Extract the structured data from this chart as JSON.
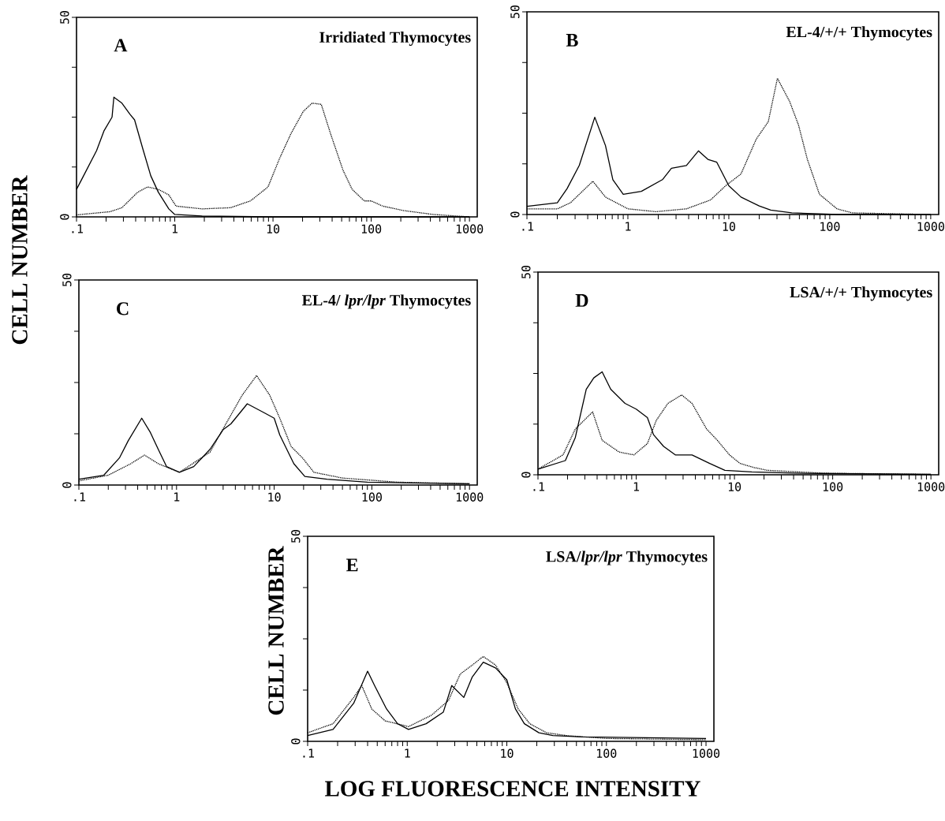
{
  "chart_data": [
    {
      "type": "line",
      "title": "Irridiated Thymocytes",
      "annotations": [
        "A"
      ],
      "ylabel": "CELL NUMBER",
      "log": "x",
      "xlim": [
        0.1,
        1200
      ],
      "ylim": [
        0,
        50
      ],
      "xticks": [
        {
          "value": 0.1,
          "label": ".1"
        },
        {
          "value": 0.2,
          "label": null
        },
        {
          "value": 0.3,
          "label": null
        },
        {
          "value": 0.4,
          "label": null
        },
        {
          "value": 0.5,
          "label": null
        },
        {
          "value": 0.6,
          "label": null
        },
        {
          "value": 0.7,
          "label": null
        },
        {
          "value": 0.8,
          "label": null
        },
        {
          "value": 0.9,
          "label": null
        },
        1,
        {
          "value": 2,
          "label": null
        },
        {
          "value": 3,
          "label": null
        },
        {
          "value": 4,
          "label": null
        },
        {
          "value": 5,
          "label": null
        },
        {
          "value": 6,
          "label": null
        },
        {
          "value": 7,
          "label": null
        },
        {
          "value": 8,
          "label": null
        },
        {
          "value": 9,
          "label": null
        },
        10,
        {
          "value": 20,
          "label": null
        },
        {
          "value": 30,
          "label": null
        },
        {
          "value": 40,
          "label": null
        },
        {
          "value": 50,
          "label": null
        },
        {
          "value": 60,
          "label": null
        },
        {
          "value": 70,
          "label": null
        },
        {
          "value": 80,
          "label": null
        },
        {
          "value": 90,
          "label": null
        },
        100,
        {
          "value": 200,
          "label": null
        },
        {
          "value": 300,
          "label": null
        },
        {
          "value": 400,
          "label": null
        },
        {
          "value": 500,
          "label": null
        },
        {
          "value": 600,
          "label": null
        },
        {
          "value": 700,
          "label": null
        },
        {
          "value": 800,
          "label": null
        },
        {
          "value": 900,
          "label": null
        },
        1000
      ],
      "yticks": [
        0,
        {
          "value": 12.5,
          "label": null
        },
        {
          "value": 25,
          "label": null
        },
        {
          "value": 37.5,
          "label": null
        },
        50
      ],
      "series": [
        {
          "color": "#000000",
          "line_style": "solid",
          "x": [
            0.1,
            0.118,
            0.16,
            0.19,
            0.23,
            0.24,
            0.29,
            0.35,
            0.39,
            0.47,
            0.57,
            0.68,
            0.87,
            1.0,
            1.9,
            10,
            100,
            1000
          ],
          "values": [
            6.9,
            10.3,
            16.6,
            21.5,
            25,
            30,
            28.5,
            25.7,
            24.3,
            17.3,
            10.3,
            6.2,
            2,
            0.6,
            0.2,
            0,
            0,
            0
          ]
        },
        {
          "color": "#000000",
          "line_style": "dotted",
          "x": [
            0.1,
            0.22,
            0.29,
            0.42,
            0.53,
            0.68,
            0.87,
            1.03,
            1.9,
            3.7,
            5.9,
            8.9,
            11.6,
            15.2,
            20.3,
            25,
            31,
            38.6,
            51.6,
            63.9,
            85,
            100,
            131,
            210,
            430,
            1000
          ],
          "values": [
            0.5,
            1.3,
            2.3,
            6.2,
            7.5,
            6.9,
            5.5,
            2.7,
            2,
            2.3,
            4,
            7.5,
            14.5,
            20.8,
            26.4,
            28.5,
            28.2,
            20.8,
            11.7,
            6.9,
            4,
            4,
            2.7,
            1.6,
            0.6,
            0
          ]
        }
      ]
    },
    {
      "type": "line",
      "title": "EL-4/+/+ Thymocytes",
      "annotations": [
        "B"
      ],
      "log": "x",
      "xlim": [
        0.1,
        1200
      ],
      "ylim": [
        0,
        50
      ],
      "xticks": [
        {
          "value": 0.1,
          "label": ".1"
        },
        {
          "value": 0.2,
          "label": null
        },
        {
          "value": 0.3,
          "label": null
        },
        {
          "value": 0.4,
          "label": null
        },
        {
          "value": 0.5,
          "label": null
        },
        {
          "value": 0.6,
          "label": null
        },
        {
          "value": 0.7,
          "label": null
        },
        {
          "value": 0.8,
          "label": null
        },
        {
          "value": 0.9,
          "label": null
        },
        1,
        {
          "value": 2,
          "label": null
        },
        {
          "value": 3,
          "label": null
        },
        {
          "value": 4,
          "label": null
        },
        {
          "value": 5,
          "label": null
        },
        {
          "value": 6,
          "label": null
        },
        {
          "value": 7,
          "label": null
        },
        {
          "value": 8,
          "label": null
        },
        {
          "value": 9,
          "label": null
        },
        10,
        {
          "value": 20,
          "label": null
        },
        {
          "value": 30,
          "label": null
        },
        {
          "value": 40,
          "label": null
        },
        {
          "value": 50,
          "label": null
        },
        {
          "value": 60,
          "label": null
        },
        {
          "value": 70,
          "label": null
        },
        {
          "value": 80,
          "label": null
        },
        {
          "value": 90,
          "label": null
        },
        100,
        {
          "value": 200,
          "label": null
        },
        {
          "value": 300,
          "label": null
        },
        {
          "value": 400,
          "label": null
        },
        {
          "value": 500,
          "label": null
        },
        {
          "value": 600,
          "label": null
        },
        {
          "value": 700,
          "label": null
        },
        {
          "value": 800,
          "label": null
        },
        {
          "value": 900,
          "label": null
        },
        1000
      ],
      "yticks": [
        0,
        {
          "value": 12.5,
          "label": null
        },
        {
          "value": 25,
          "label": null
        },
        {
          "value": 37.5,
          "label": null
        },
        50
      ],
      "series": [
        {
          "color": "#000000",
          "line_style": "solid",
          "x": [
            0.1,
            0.2,
            0.25,
            0.33,
            0.47,
            0.6,
            0.71,
            0.9,
            1.36,
            2.2,
            2.7,
            3.8,
            5.0,
            6.2,
            7.6,
            10,
            13.2,
            20,
            26,
            42,
            120,
            1000
          ],
          "values": [
            2,
            2.9,
            6.4,
            12.1,
            24,
            17,
            8.6,
            5,
            5.7,
            8.6,
            11.4,
            12.1,
            15.7,
            13.6,
            12.9,
            7.1,
            4.3,
            2.1,
            1.1,
            0.4,
            0,
            0
          ]
        },
        {
          "color": "#000000",
          "line_style": "dotted",
          "x": [
            0.1,
            0.2,
            0.27,
            0.45,
            0.6,
            1,
            1.9,
            3.8,
            6.6,
            9.3,
            13.2,
            18.7,
            24.6,
            30.3,
            40,
            49,
            60,
            79,
            118,
            167,
            1000
          ],
          "values": [
            1.4,
            1.4,
            2.9,
            8.2,
            4.3,
            1.4,
            0.7,
            1.4,
            3.6,
            7.1,
            10,
            18.6,
            22.9,
            33.6,
            27.9,
            22.1,
            13.6,
            5,
            1.4,
            0.4,
            0
          ]
        }
      ]
    },
    {
      "type": "line",
      "title": "EL-4/ *lpr/lpr* Thymocytes",
      "annotations": [
        "C"
      ],
      "log": "x",
      "xlim": [
        0.1,
        1200
      ],
      "ylim": [
        0,
        50
      ],
      "xticks": [
        {
          "value": 0.1,
          "label": ".1"
        },
        {
          "value": 0.2,
          "label": null
        },
        {
          "value": 0.3,
          "label": null
        },
        {
          "value": 0.4,
          "label": null
        },
        {
          "value": 0.5,
          "label": null
        },
        {
          "value": 0.6,
          "label": null
        },
        {
          "value": 0.7,
          "label": null
        },
        {
          "value": 0.8,
          "label": null
        },
        {
          "value": 0.9,
          "label": null
        },
        1,
        {
          "value": 2,
          "label": null
        },
        {
          "value": 3,
          "label": null
        },
        {
          "value": 4,
          "label": null
        },
        {
          "value": 5,
          "label": null
        },
        {
          "value": 6,
          "label": null
        },
        {
          "value": 7,
          "label": null
        },
        {
          "value": 8,
          "label": null
        },
        {
          "value": 9,
          "label": null
        },
        10,
        {
          "value": 20,
          "label": null
        },
        {
          "value": 30,
          "label": null
        },
        {
          "value": 40,
          "label": null
        },
        {
          "value": 50,
          "label": null
        },
        {
          "value": 60,
          "label": null
        },
        {
          "value": 70,
          "label": null
        },
        {
          "value": 80,
          "label": null
        },
        {
          "value": 90,
          "label": null
        },
        100,
        {
          "value": 200,
          "label": null
        },
        {
          "value": 300,
          "label": null
        },
        {
          "value": 400,
          "label": null
        },
        {
          "value": 500,
          "label": null
        },
        {
          "value": 600,
          "label": null
        },
        {
          "value": 700,
          "label": null
        },
        {
          "value": 800,
          "label": null
        },
        {
          "value": 900,
          "label": null
        },
        1000
      ],
      "yticks": [
        0,
        {
          "value": 12.5,
          "label": null
        },
        {
          "value": 25,
          "label": null
        },
        {
          "value": 37.5,
          "label": null
        },
        50
      ],
      "series": [
        {
          "color": "#000000",
          "line_style": "solid",
          "x": [
            0.1,
            0.18,
            0.26,
            0.32,
            0.44,
            0.54,
            0.65,
            0.79,
            1.07,
            1.5,
            2.2,
            3.0,
            3.6,
            5.3,
            7.8,
            10,
            11.4,
            15.9,
            20.6,
            34.7,
            90,
            1000
          ],
          "values": [
            1.4,
            2.4,
            6.6,
            10.8,
            16.3,
            12.8,
            8.7,
            4.5,
            3.1,
            4.5,
            8.7,
            13.5,
            14.9,
            19.8,
            17.7,
            16.3,
            12.2,
            5.2,
            2.1,
            1.4,
            0.7,
            0.3
          ]
        },
        {
          "color": "#000000",
          "line_style": "dotted",
          "x": [
            0.1,
            0.2,
            0.34,
            0.47,
            0.65,
            1.07,
            2.2,
            3.2,
            4.7,
            6.6,
            9,
            11.4,
            14.9,
            19.5,
            25.5,
            50,
            183,
            1000
          ],
          "values": [
            1,
            2.4,
            5.2,
            7.3,
            5.2,
            3.1,
            8,
            14.9,
            21.9,
            26.7,
            21.9,
            16.3,
            9.4,
            6.6,
            3.1,
            1.7,
            0.7,
            0.3
          ]
        }
      ]
    },
    {
      "type": "line",
      "title": "LSA/+/+ Thymocytes",
      "annotations": [
        "D"
      ],
      "log": "x",
      "xlim": [
        0.1,
        1200
      ],
      "ylim": [
        0,
        50
      ],
      "xticks": [
        {
          "value": 0.1,
          "label": ".1"
        },
        {
          "value": 0.2,
          "label": null
        },
        {
          "value": 0.3,
          "label": null
        },
        {
          "value": 0.4,
          "label": null
        },
        {
          "value": 0.5,
          "label": null
        },
        {
          "value": 0.6,
          "label": null
        },
        {
          "value": 0.7,
          "label": null
        },
        {
          "value": 0.8,
          "label": null
        },
        {
          "value": 0.9,
          "label": null
        },
        1,
        {
          "value": 2,
          "label": null
        },
        {
          "value": 3,
          "label": null
        },
        {
          "value": 4,
          "label": null
        },
        {
          "value": 5,
          "label": null
        },
        {
          "value": 6,
          "label": null
        },
        {
          "value": 7,
          "label": null
        },
        {
          "value": 8,
          "label": null
        },
        {
          "value": 9,
          "label": null
        },
        10,
        {
          "value": 20,
          "label": null
        },
        {
          "value": 30,
          "label": null
        },
        {
          "value": 40,
          "label": null
        },
        {
          "value": 50,
          "label": null
        },
        {
          "value": 60,
          "label": null
        },
        {
          "value": 70,
          "label": null
        },
        {
          "value": 80,
          "label": null
        },
        {
          "value": 90,
          "label": null
        },
        100,
        {
          "value": 200,
          "label": null
        },
        {
          "value": 300,
          "label": null
        },
        {
          "value": 400,
          "label": null
        },
        {
          "value": 500,
          "label": null
        },
        {
          "value": 600,
          "label": null
        },
        {
          "value": 700,
          "label": null
        },
        {
          "value": 800,
          "label": null
        },
        {
          "value": 900,
          "label": null
        },
        1000
      ],
      "yticks": [
        0,
        {
          "value": 12.5,
          "label": null
        },
        {
          "value": 25,
          "label": null
        },
        {
          "value": 37.5,
          "label": null
        },
        50
      ],
      "series": [
        {
          "color": "#000000",
          "line_style": "solid",
          "x": [
            0.1,
            0.19,
            0.24,
            0.31,
            0.37,
            0.45,
            0.55,
            0.77,
            1.0,
            1.3,
            1.5,
            1.9,
            2.5,
            3.7,
            5.6,
            8,
            15,
            40,
            1000
          ],
          "values": [
            1.4,
            3.5,
            9.2,
            21.1,
            23.9,
            25.4,
            21.1,
            17.6,
            16.2,
            14.1,
            9.9,
            7,
            4.9,
            4.9,
            2.8,
            1.1,
            0.7,
            0.4,
            0.1
          ]
        },
        {
          "color": "#000000",
          "line_style": "dotted",
          "x": [
            0.1,
            0.18,
            0.24,
            0.36,
            0.45,
            0.67,
            0.95,
            1.3,
            1.6,
            2.1,
            2.9,
            3.7,
            5.2,
            6.7,
            8.9,
            11.4,
            15.7,
            21.6,
            80,
            1000
          ],
          "values": [
            1.4,
            4.9,
            11.3,
            15.5,
            8.5,
            5.6,
            4.9,
            7.7,
            13.4,
            17.6,
            19.7,
            17.6,
            11.3,
            8.5,
            4.9,
            2.8,
            1.8,
            1.1,
            0.4,
            0.1
          ]
        }
      ]
    },
    {
      "type": "line",
      "title": "LSA/*lpr/lpr* Thymocytes",
      "annotations": [
        "E"
      ],
      "ylabel": "CELL NUMBER",
      "xlabel": "LOG FLUORESCENCE  INTENSITY",
      "log": "x",
      "xlim": [
        0.1,
        1200
      ],
      "ylim": [
        0,
        50
      ],
      "xticks": [
        {
          "value": 0.1,
          "label": ".1"
        },
        {
          "value": 0.2,
          "label": null
        },
        {
          "value": 0.3,
          "label": null
        },
        {
          "value": 0.4,
          "label": null
        },
        {
          "value": 0.5,
          "label": null
        },
        {
          "value": 0.6,
          "label": null
        },
        {
          "value": 0.7,
          "label": null
        },
        {
          "value": 0.8,
          "label": null
        },
        {
          "value": 0.9,
          "label": null
        },
        1,
        {
          "value": 2,
          "label": null
        },
        {
          "value": 3,
          "label": null
        },
        {
          "value": 4,
          "label": null
        },
        {
          "value": 5,
          "label": null
        },
        {
          "value": 6,
          "label": null
        },
        {
          "value": 7,
          "label": null
        },
        {
          "value": 8,
          "label": null
        },
        {
          "value": 9,
          "label": null
        },
        10,
        {
          "value": 20,
          "label": null
        },
        {
          "value": 30,
          "label": null
        },
        {
          "value": 40,
          "label": null
        },
        {
          "value": 50,
          "label": null
        },
        {
          "value": 60,
          "label": null
        },
        {
          "value": 70,
          "label": null
        },
        {
          "value": 80,
          "label": null
        },
        {
          "value": 90,
          "label": null
        },
        100,
        {
          "value": 200,
          "label": null
        },
        {
          "value": 300,
          "label": null
        },
        {
          "value": 400,
          "label": null
        },
        {
          "value": 500,
          "label": null
        },
        {
          "value": 600,
          "label": null
        },
        {
          "value": 700,
          "label": null
        },
        {
          "value": 800,
          "label": null
        },
        {
          "value": 900,
          "label": null
        },
        1000
      ],
      "yticks": [
        0,
        {
          "value": 12.5,
          "label": null
        },
        {
          "value": 25,
          "label": null
        },
        {
          "value": 37.5,
          "label": null
        },
        50
      ],
      "series": [
        {
          "color": "#000000",
          "line_style": "solid",
          "x": [
            0.1,
            0.18,
            0.29,
            0.4,
            0.47,
            0.62,
            0.8,
            1.03,
            1.55,
            2.3,
            2.8,
            3.7,
            4.5,
            5.8,
            7.7,
            10,
            12.2,
            15,
            21,
            29,
            57,
            1000
          ],
          "values": [
            1.4,
            2.9,
            9.3,
            17.1,
            13.6,
            7.9,
            4.3,
            2.9,
            4.3,
            7.1,
            13.6,
            10.7,
            15.7,
            19.3,
            17.9,
            15,
            7.9,
            4.3,
            2.1,
            1.4,
            1.1,
            0.7
          ]
        },
        {
          "color": "#000000",
          "line_style": "dotted",
          "x": [
            0.1,
            0.18,
            0.29,
            0.35,
            0.44,
            0.6,
            1.03,
            1.76,
            2.6,
            3.4,
            4.5,
            5.8,
            7.7,
            10,
            13,
            17,
            25,
            40,
            100,
            1000
          ],
          "values": [
            2.1,
            4.3,
            10.7,
            13.6,
            7.9,
            5,
            3.6,
            6.4,
            10,
            16.4,
            18.6,
            20.7,
            18.6,
            14.3,
            7.9,
            4.3,
            2.1,
            1.4,
            0.7,
            0.4
          ]
        }
      ]
    }
  ]
}
